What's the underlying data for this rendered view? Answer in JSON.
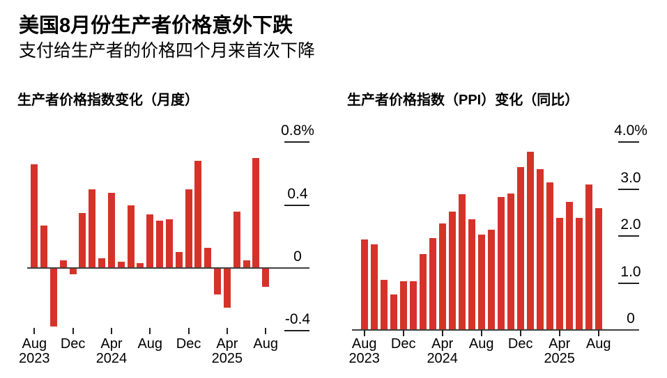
{
  "page": {
    "title": "美国8月份生产者价格意外下跌",
    "subtitle": "支付给生产者的价格四个月来首次下降"
  },
  "colors": {
    "bar_red": "#d5332a",
    "axis_line": "#3f3f3f",
    "tick": "#1f1f1f",
    "text": "#000000",
    "background": "#ffffff"
  },
  "chart_data": [
    {
      "type": "bar",
      "title": "生产者价格指数变化（月度）",
      "unit": "percent, month-over-month",
      "categories": [
        "Aug 2023",
        "Sep 2023",
        "Oct 2023",
        "Nov 2023",
        "Dec 2023",
        "Jan 2024",
        "Feb 2024",
        "Mar 2024",
        "Apr 2024",
        "May 2024",
        "Jun 2024",
        "Jul 2024",
        "Aug 2024",
        "Sep 2024",
        "Oct 2024",
        "Nov 2024",
        "Dec 2024",
        "Jan 2025",
        "Feb 2025",
        "Mar 2025",
        "Apr 2025",
        "May 2025",
        "Jun 2025",
        "Jul 2025",
        "Aug 2025"
      ],
      "values": [
        0.66,
        0.27,
        -0.37,
        0.05,
        -0.04,
        0.35,
        0.5,
        0.06,
        0.48,
        0.04,
        0.4,
        0.03,
        0.34,
        0.3,
        0.31,
        0.1,
        0.5,
        0.68,
        0.13,
        -0.17,
        -0.25,
        0.36,
        0.05,
        0.7,
        -0.12
      ],
      "ylim": [
        -0.4,
        0.8
      ],
      "yticks": [
        {
          "value": 0.8,
          "label": "0.8%"
        },
        {
          "value": 0.4,
          "label": "0.4"
        },
        {
          "value": 0,
          "label": "0"
        },
        {
          "value": -0.4,
          "label": "-0.4"
        }
      ],
      "xticks": {
        "indices": [
          0,
          4,
          8,
          12,
          16,
          20,
          24
        ],
        "labels": [
          "Aug",
          "Dec",
          "Apr",
          "Aug",
          "Dec",
          "Apr",
          "Aug"
        ],
        "years": [
          {
            "label": "2023",
            "at": 0
          },
          {
            "label": "2024",
            "at": 2
          },
          {
            "label": "2025",
            "at": 5
          }
        ]
      },
      "grid": "short right-side tick segments, y-axis labels on right",
      "legend": "none"
    },
    {
      "type": "bar",
      "title": "生产者价格指数（PPI）变化（同比）",
      "unit": "percent, year-over-year",
      "categories": [
        "Aug 2023",
        "Sep 2023",
        "Oct 2023",
        "Nov 2023",
        "Dec 2023",
        "Jan 2024",
        "Feb 2024",
        "Mar 2024",
        "Apr 2024",
        "May 2024",
        "Jun 2024",
        "Jul 2024",
        "Aug 2024",
        "Sep 2024",
        "Oct 2024",
        "Nov 2024",
        "Dec 2024",
        "Jan 2025",
        "Feb 2025",
        "Mar 2025",
        "Apr 2025",
        "May 2025",
        "Jun 2025",
        "Jul 2025",
        "Aug 2025"
      ],
      "values": [
        1.92,
        1.82,
        1.06,
        0.75,
        1.04,
        1.03,
        1.61,
        1.95,
        2.27,
        2.52,
        2.89,
        2.36,
        2.03,
        2.13,
        2.83,
        2.9,
        3.46,
        3.8,
        3.42,
        3.14,
        2.39,
        2.72,
        2.38,
        3.09,
        2.6
      ],
      "ylim": [
        0,
        4.0
      ],
      "yticks": [
        {
          "value": 4.0,
          "label": "4.0%"
        },
        {
          "value": 3.0,
          "label": "3.0"
        },
        {
          "value": 2.0,
          "label": "2.0"
        },
        {
          "value": 1.0,
          "label": "1.0"
        },
        {
          "value": 0,
          "label": "0"
        }
      ],
      "xticks": {
        "indices": [
          0,
          4,
          8,
          12,
          16,
          20,
          24
        ],
        "labels": [
          "Aug",
          "Dec",
          "Apr",
          "Aug",
          "Dec",
          "Apr",
          "Aug"
        ],
        "years": [
          {
            "label": "2023",
            "at": 0
          },
          {
            "label": "2024",
            "at": 2
          },
          {
            "label": "2025",
            "at": 5
          }
        ]
      },
      "grid": "short right-side tick segments, y-axis labels on right",
      "legend": "none"
    }
  ]
}
